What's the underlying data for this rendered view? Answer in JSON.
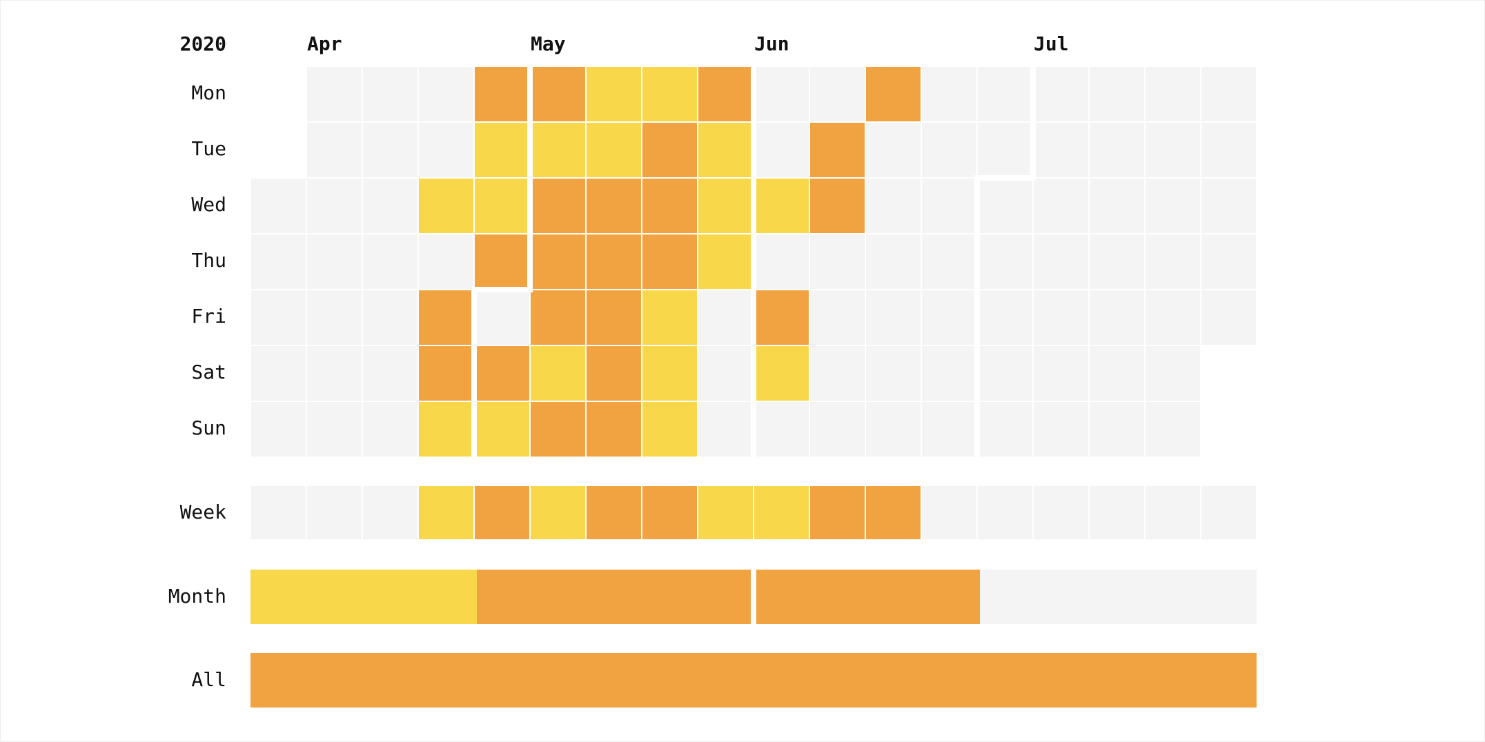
{
  "colors": {
    "empty": "#f4f4f4",
    "low": "#f9d74b",
    "high": "#f2a341",
    "background": "#ffffff",
    "text": "#111111"
  },
  "chart_data": {
    "type": "heatmap",
    "year": "2020",
    "months": [
      "Apr",
      "May",
      "Jun",
      "Jul"
    ],
    "day_labels": [
      "Mon",
      "Tue",
      "Wed",
      "Thu",
      "Fri",
      "Sat",
      "Sun"
    ],
    "aggregate_labels": {
      "week": "Week",
      "month": "Month",
      "all": "All"
    },
    "levels": [
      "empty",
      "low",
      "high"
    ],
    "start_date": "2020-04-01",
    "daily": [
      [
        "2020-04-01",
        "empty"
      ],
      [
        "2020-04-02",
        "empty"
      ],
      [
        "2020-04-03",
        "empty"
      ],
      [
        "2020-04-04",
        "empty"
      ],
      [
        "2020-04-05",
        "empty"
      ],
      [
        "2020-04-06",
        "empty"
      ],
      [
        "2020-04-07",
        "empty"
      ],
      [
        "2020-04-08",
        "empty"
      ],
      [
        "2020-04-09",
        "empty"
      ],
      [
        "2020-04-10",
        "empty"
      ],
      [
        "2020-04-11",
        "empty"
      ],
      [
        "2020-04-12",
        "empty"
      ],
      [
        "2020-04-13",
        "empty"
      ],
      [
        "2020-04-14",
        "empty"
      ],
      [
        "2020-04-15",
        "empty"
      ],
      [
        "2020-04-16",
        "empty"
      ],
      [
        "2020-04-17",
        "empty"
      ],
      [
        "2020-04-18",
        "empty"
      ],
      [
        "2020-04-19",
        "empty"
      ],
      [
        "2020-04-20",
        "empty"
      ],
      [
        "2020-04-21",
        "empty"
      ],
      [
        "2020-04-22",
        "low"
      ],
      [
        "2020-04-23",
        "empty"
      ],
      [
        "2020-04-24",
        "high"
      ],
      [
        "2020-04-25",
        "high"
      ],
      [
        "2020-04-26",
        "low"
      ],
      [
        "2020-04-27",
        "high"
      ],
      [
        "2020-04-28",
        "low"
      ],
      [
        "2020-04-29",
        "low"
      ],
      [
        "2020-04-30",
        "high"
      ],
      [
        "2020-05-01",
        "empty"
      ],
      [
        "2020-05-02",
        "high"
      ],
      [
        "2020-05-03",
        "low"
      ],
      [
        "2020-05-04",
        "high"
      ],
      [
        "2020-05-05",
        "low"
      ],
      [
        "2020-05-06",
        "high"
      ],
      [
        "2020-05-07",
        "high"
      ],
      [
        "2020-05-08",
        "high"
      ],
      [
        "2020-05-09",
        "low"
      ],
      [
        "2020-05-10",
        "high"
      ],
      [
        "2020-05-11",
        "low"
      ],
      [
        "2020-05-12",
        "low"
      ],
      [
        "2020-05-13",
        "high"
      ],
      [
        "2020-05-14",
        "high"
      ],
      [
        "2020-05-15",
        "high"
      ],
      [
        "2020-05-16",
        "high"
      ],
      [
        "2020-05-17",
        "high"
      ],
      [
        "2020-05-18",
        "low"
      ],
      [
        "2020-05-19",
        "high"
      ],
      [
        "2020-05-20",
        "high"
      ],
      [
        "2020-05-21",
        "high"
      ],
      [
        "2020-05-22",
        "low"
      ],
      [
        "2020-05-23",
        "low"
      ],
      [
        "2020-05-24",
        "low"
      ],
      [
        "2020-05-25",
        "high"
      ],
      [
        "2020-05-26",
        "low"
      ],
      [
        "2020-05-27",
        "low"
      ],
      [
        "2020-05-28",
        "low"
      ],
      [
        "2020-05-29",
        "empty"
      ],
      [
        "2020-05-30",
        "empty"
      ],
      [
        "2020-05-31",
        "empty"
      ],
      [
        "2020-06-01",
        "empty"
      ],
      [
        "2020-06-02",
        "empty"
      ],
      [
        "2020-06-03",
        "low"
      ],
      [
        "2020-06-04",
        "empty"
      ],
      [
        "2020-06-05",
        "high"
      ],
      [
        "2020-06-06",
        "low"
      ],
      [
        "2020-06-07",
        "empty"
      ],
      [
        "2020-06-08",
        "empty"
      ],
      [
        "2020-06-09",
        "high"
      ],
      [
        "2020-06-10",
        "high"
      ],
      [
        "2020-06-11",
        "empty"
      ],
      [
        "2020-06-12",
        "empty"
      ],
      [
        "2020-06-13",
        "empty"
      ],
      [
        "2020-06-14",
        "empty"
      ],
      [
        "2020-06-15",
        "high"
      ],
      [
        "2020-06-16",
        "empty"
      ],
      [
        "2020-06-17",
        "empty"
      ],
      [
        "2020-06-18",
        "empty"
      ],
      [
        "2020-06-19",
        "empty"
      ],
      [
        "2020-06-20",
        "empty"
      ],
      [
        "2020-06-21",
        "empty"
      ],
      [
        "2020-06-22",
        "empty"
      ],
      [
        "2020-06-23",
        "empty"
      ],
      [
        "2020-06-24",
        "empty"
      ],
      [
        "2020-06-25",
        "empty"
      ],
      [
        "2020-06-26",
        "empty"
      ],
      [
        "2020-06-27",
        "empty"
      ],
      [
        "2020-06-28",
        "empty"
      ],
      [
        "2020-06-29",
        "empty"
      ],
      [
        "2020-06-30",
        "empty"
      ],
      [
        "2020-07-01",
        "empty"
      ],
      [
        "2020-07-02",
        "empty"
      ],
      [
        "2020-07-03",
        "empty"
      ],
      [
        "2020-07-04",
        "empty"
      ],
      [
        "2020-07-05",
        "empty"
      ],
      [
        "2020-07-06",
        "empty"
      ],
      [
        "2020-07-07",
        "empty"
      ],
      [
        "2020-07-08",
        "empty"
      ],
      [
        "2020-07-09",
        "empty"
      ],
      [
        "2020-07-10",
        "empty"
      ],
      [
        "2020-07-11",
        "empty"
      ],
      [
        "2020-07-12",
        "empty"
      ],
      [
        "2020-07-13",
        "empty"
      ],
      [
        "2020-07-14",
        "empty"
      ],
      [
        "2020-07-15",
        "empty"
      ],
      [
        "2020-07-16",
        "empty"
      ],
      [
        "2020-07-17",
        "empty"
      ],
      [
        "2020-07-18",
        "empty"
      ],
      [
        "2020-07-19",
        "empty"
      ],
      [
        "2020-07-20",
        "empty"
      ],
      [
        "2020-07-21",
        "empty"
      ],
      [
        "2020-07-22",
        "empty"
      ],
      [
        "2020-07-23",
        "empty"
      ],
      [
        "2020-07-24",
        "empty"
      ],
      [
        "2020-07-25",
        "empty"
      ],
      [
        "2020-07-26",
        "empty"
      ],
      [
        "2020-07-27",
        "empty"
      ],
      [
        "2020-07-28",
        "empty"
      ],
      [
        "2020-07-29",
        "empty"
      ],
      [
        "2020-07-30",
        "empty"
      ],
      [
        "2020-07-31",
        "empty"
      ]
    ],
    "weekly": [
      [
        "2020-03-30",
        "empty"
      ],
      [
        "2020-04-06",
        "empty"
      ],
      [
        "2020-04-13",
        "empty"
      ],
      [
        "2020-04-20",
        "low"
      ],
      [
        "2020-04-27",
        "high"
      ],
      [
        "2020-05-04",
        "low"
      ],
      [
        "2020-05-11",
        "high"
      ],
      [
        "2020-05-18",
        "high"
      ],
      [
        "2020-05-25",
        "low"
      ],
      [
        "2020-06-01",
        "low"
      ],
      [
        "2020-06-08",
        "high"
      ],
      [
        "2020-06-15",
        "high"
      ],
      [
        "2020-06-22",
        "empty"
      ],
      [
        "2020-06-29",
        "empty"
      ],
      [
        "2020-07-06",
        "empty"
      ],
      [
        "2020-07-13",
        "empty"
      ],
      [
        "2020-07-20",
        "empty"
      ],
      [
        "2020-07-27",
        "empty"
      ]
    ],
    "monthly": [
      [
        "Apr",
        "low"
      ],
      [
        "May",
        "high"
      ],
      [
        "Jun",
        "high"
      ],
      [
        "Jul",
        "empty"
      ]
    ],
    "all": "high"
  }
}
